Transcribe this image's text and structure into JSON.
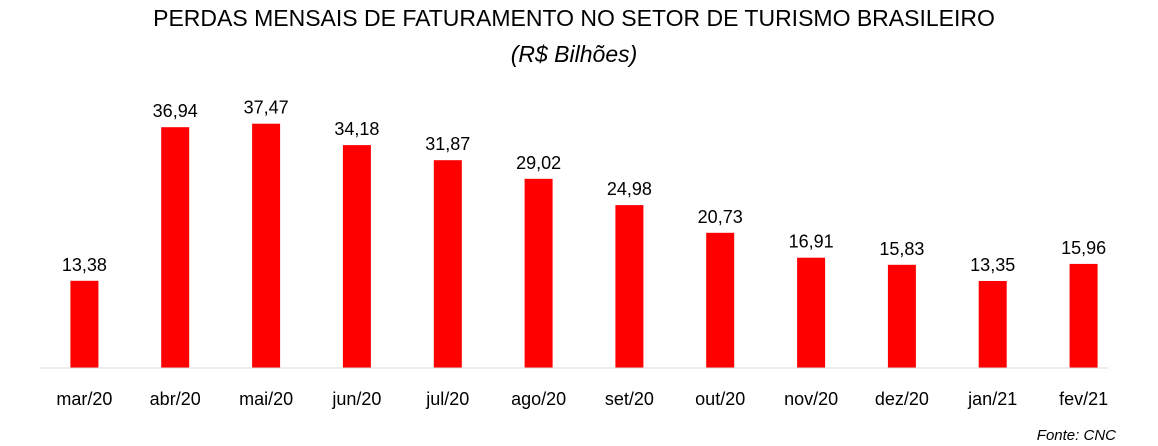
{
  "chart_data": {
    "type": "bar",
    "title": "PERDAS MENSAIS DE FATURAMENTO NO SETOR DE TURISMO BRASILEIRO",
    "subtitle": "(R$ Bilhões)",
    "categories": [
      "mar/20",
      "abr/20",
      "mai/20",
      "jun/20",
      "jul/20",
      "ago/20",
      "set/20",
      "out/20",
      "nov/20",
      "dez/20",
      "jan/21",
      "fev/21"
    ],
    "values": [
      13.38,
      36.94,
      37.47,
      34.18,
      31.87,
      29.02,
      24.98,
      20.73,
      16.91,
      15.83,
      13.35,
      15.96
    ],
    "data_labels": [
      "13,38",
      "36,94",
      "37,47",
      "34,18",
      "31,87",
      "29,02",
      "24,98",
      "20,73",
      "16,91",
      "15,83",
      "13,35",
      "15,96"
    ],
    "xlabel": "",
    "ylabel": "",
    "ylim": [
      0,
      40
    ],
    "grid": false,
    "legend": "none",
    "bar_color": "#FF0000",
    "source": "Fonte: CNC"
  }
}
